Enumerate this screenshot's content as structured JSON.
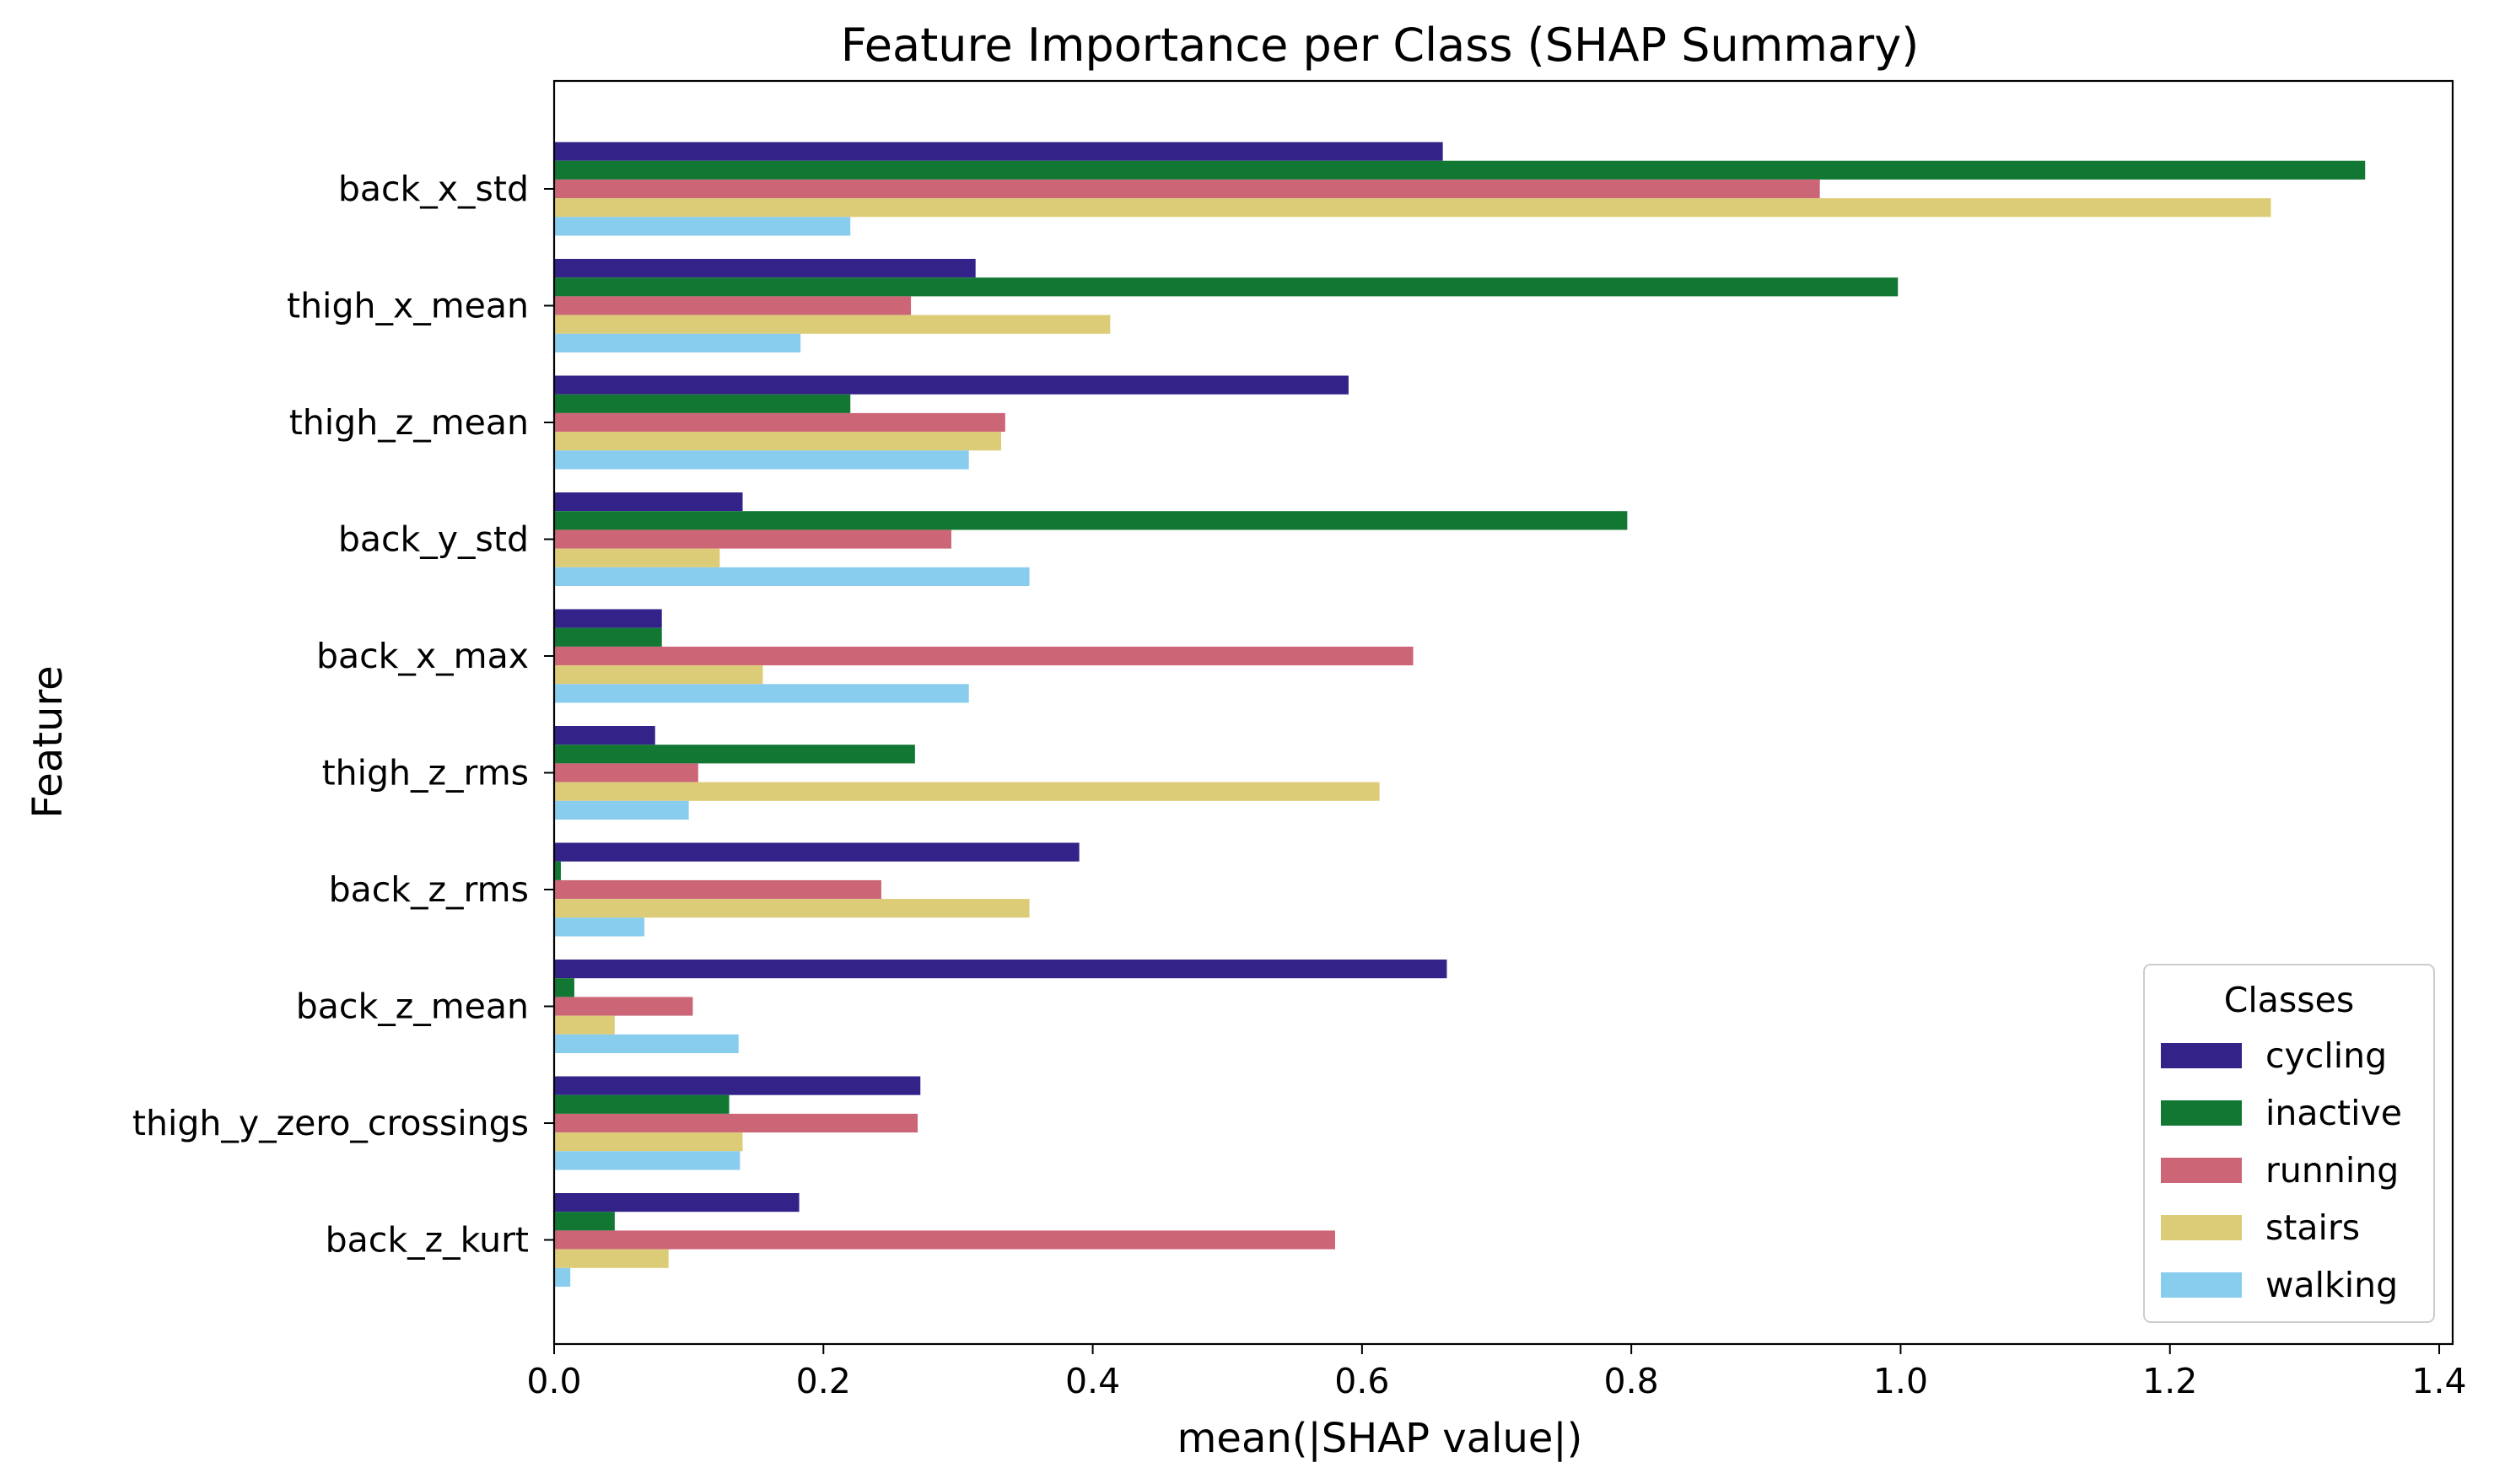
{
  "chart_data": {
    "type": "bar",
    "orientation": "horizontal",
    "title": "Feature Importance per Class (SHAP Summary)",
    "xlabel": "mean(|SHAP value|)",
    "ylabel": "Feature",
    "xlim": [
      0.0,
      1.41
    ],
    "xticks": [
      0.0,
      0.2,
      0.4,
      0.6,
      0.8,
      1.0,
      1.2,
      1.4
    ],
    "xtick_labels": [
      "0.0",
      "0.2",
      "0.4",
      "0.6",
      "0.8",
      "1.0",
      "1.2",
      "1.4"
    ],
    "grid": false,
    "categories": [
      "back_x_std",
      "thigh_x_mean",
      "thigh_z_mean",
      "back_y_std",
      "back_x_max",
      "thigh_z_rms",
      "back_z_rms",
      "back_z_mean",
      "thigh_y_zero_crossings",
      "back_z_kurt"
    ],
    "series": [
      {
        "name": "cycling",
        "color": "#332288",
        "values": [
          0.66,
          0.313,
          0.59,
          0.14,
          0.08,
          0.075,
          0.39,
          0.663,
          0.272,
          0.182
        ]
      },
      {
        "name": "inactive",
        "color": "#117733",
        "values": [
          1.345,
          0.998,
          0.22,
          0.797,
          0.08,
          0.268,
          0.005,
          0.015,
          0.13,
          0.045
        ]
      },
      {
        "name": "running",
        "color": "#CC6677",
        "values": [
          0.94,
          0.265,
          0.335,
          0.295,
          0.638,
          0.107,
          0.243,
          0.103,
          0.27,
          0.58
        ]
      },
      {
        "name": "stairs",
        "color": "#DDCC77",
        "values": [
          1.275,
          0.413,
          0.332,
          0.123,
          0.155,
          0.613,
          0.353,
          0.045,
          0.14,
          0.085
        ]
      },
      {
        "name": "walking",
        "color": "#88CCEE",
        "values": [
          0.22,
          0.183,
          0.308,
          0.353,
          0.308,
          0.1,
          0.067,
          0.137,
          0.138,
          0.012
        ]
      }
    ],
    "legend": {
      "title": "Classes",
      "position": "lower-right"
    }
  }
}
